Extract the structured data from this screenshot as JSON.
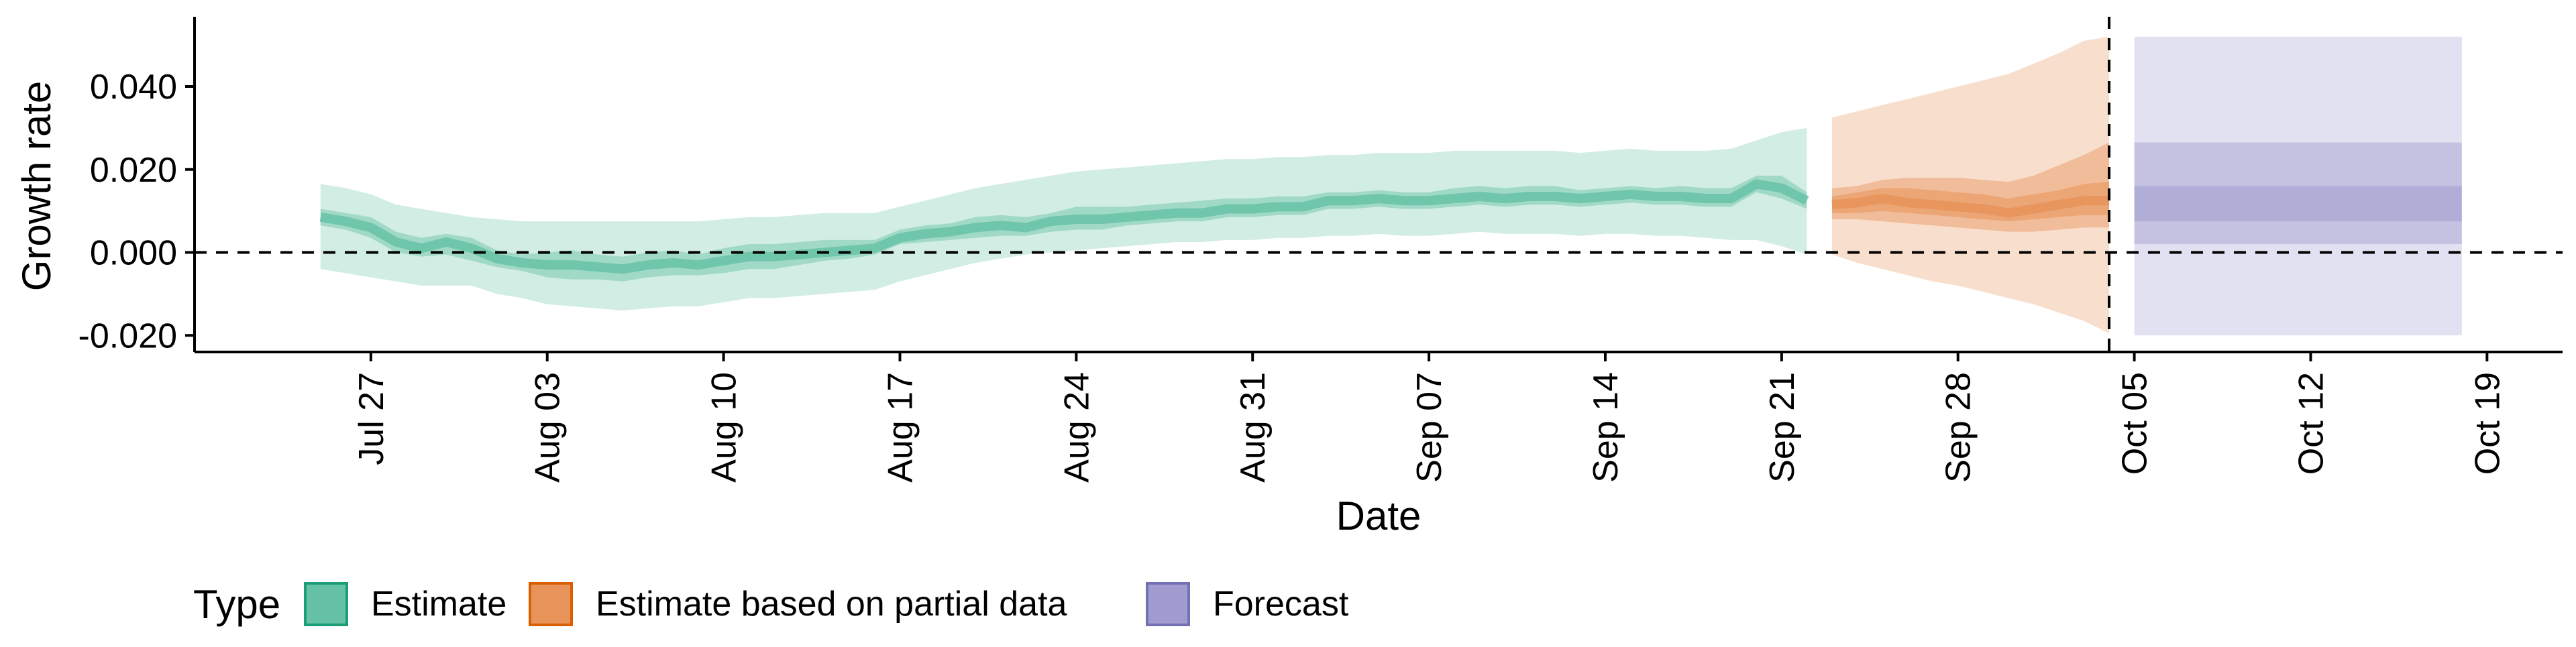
{
  "chart_data": {
    "type": "area",
    "xlabel": "Date",
    "ylabel": "Growth rate",
    "x_range": [
      "2020-07-20",
      "2020-10-22"
    ],
    "ylim": [
      -0.024,
      0.056
    ],
    "y_ticks": [
      -0.02,
      0.0,
      0.02,
      0.04
    ],
    "y_tick_labels": [
      "-0.020",
      "0.000",
      "0.020",
      "0.040"
    ],
    "x_ticks": [
      {
        "date": "2020-07-27",
        "label": "Jul 27"
      },
      {
        "date": "2020-08-03",
        "label": "Aug 03"
      },
      {
        "date": "2020-08-10",
        "label": "Aug 10"
      },
      {
        "date": "2020-08-17",
        "label": "Aug 17"
      },
      {
        "date": "2020-08-24",
        "label": "Aug 24"
      },
      {
        "date": "2020-08-31",
        "label": "Aug 31"
      },
      {
        "date": "2020-09-07",
        "label": "Sep 07"
      },
      {
        "date": "2020-09-14",
        "label": "Sep 14"
      },
      {
        "date": "2020-09-21",
        "label": "Sep 21"
      },
      {
        "date": "2020-09-28",
        "label": "Sep 28"
      },
      {
        "date": "2020-10-05",
        "label": "Oct 05"
      },
      {
        "date": "2020-10-12",
        "label": "Oct 12"
      },
      {
        "date": "2020-10-19",
        "label": "Oct 19"
      }
    ],
    "reference_line_y": 0.0,
    "vertical_line_date": "2020-10-04",
    "grid": false,
    "legend": {
      "title": "Type",
      "position": "bottom-left",
      "entries": [
        {
          "name": "Estimate",
          "fill": "#66c2a5",
          "border": "#1b9e77"
        },
        {
          "name": "Estimate based on partial data",
          "fill": "#e8935a",
          "border": "#d95f02"
        },
        {
          "name": "Forecast",
          "fill": "#a09ccf",
          "border": "#7570b3"
        }
      ]
    },
    "series": [
      {
        "name": "Estimate",
        "color": "#66c2a5",
        "x": [
          "2020-07-25",
          "2020-07-26",
          "2020-07-27",
          "2020-07-28",
          "2020-07-29",
          "2020-07-30",
          "2020-07-31",
          "2020-08-01",
          "2020-08-02",
          "2020-08-03",
          "2020-08-04",
          "2020-08-05",
          "2020-08-06",
          "2020-08-07",
          "2020-08-08",
          "2020-08-09",
          "2020-08-10",
          "2020-08-11",
          "2020-08-12",
          "2020-08-13",
          "2020-08-14",
          "2020-08-15",
          "2020-08-16",
          "2020-08-17",
          "2020-08-18",
          "2020-08-19",
          "2020-08-20",
          "2020-08-21",
          "2020-08-22",
          "2020-08-23",
          "2020-08-24",
          "2020-08-25",
          "2020-08-26",
          "2020-08-27",
          "2020-08-28",
          "2020-08-29",
          "2020-08-30",
          "2020-08-31",
          "2020-09-01",
          "2020-09-02",
          "2020-09-03",
          "2020-09-04",
          "2020-09-05",
          "2020-09-06",
          "2020-09-07",
          "2020-09-08",
          "2020-09-09",
          "2020-09-10",
          "2020-09-11",
          "2020-09-12",
          "2020-09-13",
          "2020-09-14",
          "2020-09-15",
          "2020-09-16",
          "2020-09-17",
          "2020-09-18",
          "2020-09-19",
          "2020-09-20",
          "2020-09-21",
          "2020-09-22"
        ],
        "median": [
          0.0085,
          0.0075,
          0.006,
          0.0025,
          0.001,
          0.0025,
          0.001,
          -0.0015,
          -0.0025,
          -0.003,
          -0.003,
          -0.0035,
          -0.004,
          -0.003,
          -0.0025,
          -0.003,
          -0.002,
          -0.001,
          -0.001,
          -0.0005,
          0.0,
          0.0005,
          0.001,
          0.0035,
          0.0045,
          0.005,
          0.006,
          0.0065,
          0.006,
          0.0075,
          0.008,
          0.008,
          0.0085,
          0.009,
          0.0095,
          0.0095,
          0.0105,
          0.0105,
          0.011,
          0.011,
          0.0125,
          0.0125,
          0.013,
          0.0125,
          0.0125,
          0.013,
          0.0135,
          0.013,
          0.0135,
          0.0135,
          0.013,
          0.0135,
          0.014,
          0.0135,
          0.0135,
          0.013,
          0.013,
          0.0165,
          0.0155,
          0.0125
        ],
        "lower_50": [
          0.0065,
          0.0055,
          0.0035,
          0.0,
          -0.001,
          -0.0005,
          -0.002,
          -0.0035,
          -0.0045,
          -0.006,
          -0.0065,
          -0.0065,
          -0.007,
          -0.006,
          -0.0055,
          -0.0055,
          -0.005,
          -0.004,
          -0.004,
          -0.003,
          -0.002,
          -0.0015,
          -0.0005,
          0.002,
          0.0025,
          0.003,
          0.0035,
          0.004,
          0.004,
          0.005,
          0.0055,
          0.0055,
          0.0065,
          0.007,
          0.0075,
          0.0075,
          0.0085,
          0.0085,
          0.009,
          0.009,
          0.0105,
          0.0105,
          0.011,
          0.0105,
          0.0105,
          0.011,
          0.0115,
          0.011,
          0.0115,
          0.0115,
          0.011,
          0.0115,
          0.012,
          0.0115,
          0.0115,
          0.011,
          0.011,
          0.0145,
          0.013,
          0.0105
        ],
        "upper_50": [
          0.0105,
          0.0095,
          0.0085,
          0.005,
          0.0035,
          0.0045,
          0.0035,
          0.0005,
          -0.0005,
          -0.0,
          0.0005,
          -0.0005,
          -0.001,
          0.0,
          0.0005,
          -0.0005,
          0.001,
          0.002,
          0.002,
          0.0025,
          0.003,
          0.003,
          0.003,
          0.0055,
          0.0065,
          0.007,
          0.0085,
          0.009,
          0.0085,
          0.0095,
          0.011,
          0.011,
          0.011,
          0.0115,
          0.012,
          0.0125,
          0.013,
          0.013,
          0.0135,
          0.0135,
          0.0145,
          0.0145,
          0.015,
          0.0145,
          0.0145,
          0.0155,
          0.016,
          0.0155,
          0.016,
          0.016,
          0.015,
          0.0155,
          0.016,
          0.0155,
          0.016,
          0.0155,
          0.0155,
          0.0185,
          0.0185,
          0.0145
        ],
        "lower_90": [
          -0.004,
          -0.005,
          -0.006,
          -0.007,
          -0.008,
          -0.008,
          -0.008,
          -0.01,
          -0.011,
          -0.0125,
          -0.013,
          -0.0135,
          -0.014,
          -0.0135,
          -0.013,
          -0.013,
          -0.012,
          -0.011,
          -0.011,
          -0.0105,
          -0.01,
          -0.0095,
          -0.009,
          -0.007,
          -0.0055,
          -0.004,
          -0.0025,
          -0.0015,
          -0.0005,
          0.0,
          0.0005,
          0.001,
          0.0015,
          0.002,
          0.0025,
          0.0025,
          0.003,
          0.003,
          0.0035,
          0.0035,
          0.004,
          0.004,
          0.0045,
          0.004,
          0.004,
          0.0045,
          0.005,
          0.0045,
          0.0045,
          0.0045,
          0.004,
          0.0045,
          0.0045,
          0.004,
          0.004,
          0.0035,
          0.003,
          0.003,
          0.0015,
          -0.0005
        ],
        "upper_90": [
          0.0165,
          0.0155,
          0.014,
          0.0115,
          0.0105,
          0.0095,
          0.0085,
          0.008,
          0.0075,
          0.0075,
          0.0075,
          0.0075,
          0.0075,
          0.0075,
          0.0075,
          0.0075,
          0.008,
          0.0085,
          0.0085,
          0.009,
          0.0095,
          0.0095,
          0.0095,
          0.011,
          0.0125,
          0.014,
          0.0155,
          0.0165,
          0.0175,
          0.0185,
          0.0195,
          0.02,
          0.0205,
          0.021,
          0.0215,
          0.022,
          0.0225,
          0.0225,
          0.023,
          0.023,
          0.0235,
          0.0235,
          0.024,
          0.024,
          0.024,
          0.0245,
          0.0245,
          0.0245,
          0.0245,
          0.0245,
          0.024,
          0.0245,
          0.025,
          0.0245,
          0.0245,
          0.0245,
          0.025,
          0.027,
          0.029,
          0.03
        ]
      },
      {
        "name": "Estimate based on partial data",
        "color": "#e8935a",
        "x": [
          "2020-09-23",
          "2020-09-24",
          "2020-09-25",
          "2020-09-26",
          "2020-09-27",
          "2020-09-28",
          "2020-09-29",
          "2020-09-30",
          "2020-10-01",
          "2020-10-02",
          "2020-10-03",
          "2020-10-04"
        ],
        "median": [
          0.0115,
          0.012,
          0.013,
          0.012,
          0.0115,
          0.011,
          0.0105,
          0.0095,
          0.0105,
          0.0115,
          0.0125,
          0.0125
        ],
        "lower_50": [
          0.008,
          0.008,
          0.0075,
          0.007,
          0.0065,
          0.006,
          0.0055,
          0.005,
          0.005,
          0.0055,
          0.006,
          0.006
        ],
        "upper_50": [
          0.0155,
          0.016,
          0.0175,
          0.018,
          0.018,
          0.018,
          0.0175,
          0.017,
          0.0185,
          0.021,
          0.0235,
          0.0265
        ],
        "lower_25": [
          0.0095,
          0.0095,
          0.01,
          0.0095,
          0.009,
          0.0085,
          0.008,
          0.0075,
          0.008,
          0.0085,
          0.009,
          0.009
        ],
        "upper_25": [
          0.0135,
          0.0145,
          0.0155,
          0.0155,
          0.015,
          0.0145,
          0.014,
          0.013,
          0.014,
          0.015,
          0.0165,
          0.017
        ],
        "lower_90": [
          -0.0005,
          -0.0025,
          -0.004,
          -0.0055,
          -0.007,
          -0.008,
          -0.0095,
          -0.011,
          -0.0125,
          -0.0145,
          -0.0165,
          -0.0195
        ],
        "upper_90": [
          0.0325,
          0.034,
          0.0355,
          0.037,
          0.0385,
          0.04,
          0.0415,
          0.043,
          0.0455,
          0.048,
          0.051,
          0.052
        ]
      },
      {
        "name": "Forecast",
        "color": "#a09ccf",
        "x": [
          "2020-10-05",
          "2020-10-18"
        ],
        "lower_90": [
          -0.02,
          -0.02
        ],
        "upper_90": [
          0.052,
          0.052
        ],
        "lower_50": [
          0.002,
          0.002
        ],
        "upper_50": [
          0.0265,
          0.0265
        ],
        "lower_25": [
          0.0075,
          0.0075
        ],
        "upper_25": [
          0.016,
          0.016
        ]
      }
    ]
  }
}
